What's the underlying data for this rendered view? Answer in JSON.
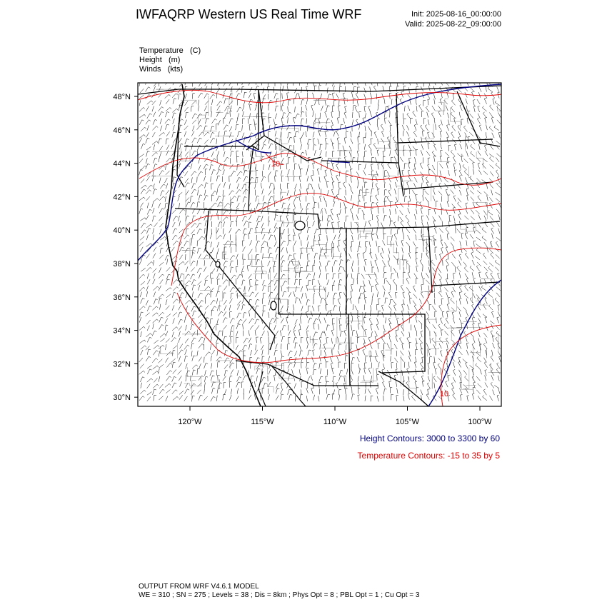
{
  "header": {
    "title": "IWFAQRP Western US Real Time WRF",
    "init": "Init: 2025-08-16_00:00:00",
    "valid": "Valid: 2025-08-22_09:00:00"
  },
  "fields": [
    {
      "name": "Temperature",
      "unit": "(C)"
    },
    {
      "name": "Height",
      "unit": "(m)"
    },
    {
      "name": "Winds",
      "unit": "(kts)"
    }
  ],
  "map": {
    "lat_ticks": [
      "48°N",
      "46°N",
      "44°N",
      "42°N",
      "40°N",
      "38°N",
      "36°N",
      "34°N",
      "32°N",
      "30°N"
    ],
    "lon_ticks": [
      "120°W",
      "115°W",
      "110°W",
      "105°W",
      "100°W"
    ],
    "temp_labels": [
      "10",
      "10"
    ]
  },
  "legend": {
    "height": "Height Contours: 3000 to 3300 by 60",
    "temperature": "Temperature Contours: -15 to 35 by 5"
  },
  "footer": {
    "line1": "OUTPUT FROM WRF V4.6.1 MODEL",
    "line2": "WE = 310 ; SN = 275 ; Levels = 38 ; Dis = 8km ; Phys Opt = 8 ; PBL Opt = 1 ; Cu Opt = 3"
  },
  "colors": {
    "height_contour": "#000080",
    "temperature_contour": "#e00000",
    "borders": "#000000"
  }
}
